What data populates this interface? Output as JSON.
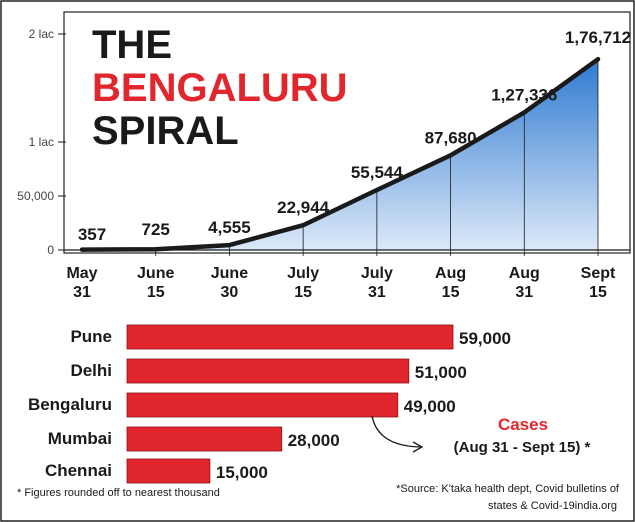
{
  "title": {
    "line1": "THE",
    "line2": "BENGALURU",
    "line3": "SPIRAL",
    "line2_color": "#e1262d"
  },
  "colors": {
    "area_top": "#2f7ad1",
    "area_bottom": "#dce9f8",
    "line": "#1a1a1a",
    "bar": "#e1262d",
    "cases_label": "#e1262d",
    "text": "#1a1a1a"
  },
  "chart_data": [
    {
      "type": "area",
      "x": [
        "May 31",
        "June 15",
        "June 30",
        "July 15",
        "July 31",
        "Aug 15",
        "Aug 31",
        "Sept 15"
      ],
      "x_tick_lines": [
        [
          "May",
          "31"
        ],
        [
          "June",
          "15"
        ],
        [
          "June",
          "30"
        ],
        [
          "July",
          "15"
        ],
        [
          "July",
          "31"
        ],
        [
          "Aug",
          "15"
        ],
        [
          "Aug",
          "31"
        ],
        [
          "Sept",
          "15"
        ]
      ],
      "values": [
        357,
        725,
        4555,
        22944,
        55544,
        87680,
        127336,
        176712
      ],
      "value_labels": [
        "357",
        "725",
        "4,555",
        "22,944",
        "55,544",
        "87,680",
        "1,27,336",
        "1,76,712"
      ],
      "ylim": [
        0,
        200000
      ],
      "yticks": [
        0,
        50000,
        100000,
        200000
      ],
      "ytick_labels": [
        "0",
        "50,000",
        "1 lac",
        "2 lac"
      ],
      "grid": false
    },
    {
      "type": "bar",
      "orientation": "horizontal",
      "categories": [
        "Pune",
        "Delhi",
        "Bengaluru",
        "Mumbai",
        "Chennai"
      ],
      "values": [
        59000,
        51000,
        49000,
        28000,
        15000
      ],
      "value_labels": [
        "59,000",
        "51,000",
        "49,000",
        "28,000",
        "15,000"
      ],
      "annotation_title": "Cases",
      "annotation_subtitle": "(Aug 31 - Sept 15) *"
    }
  ],
  "footnotes": {
    "left": "* Figures rounded off to nearest thousand",
    "right_line1": "*Source: K'taka health dept, Covid bulletins of",
    "right_line2": "states & Covid-19india.org"
  }
}
